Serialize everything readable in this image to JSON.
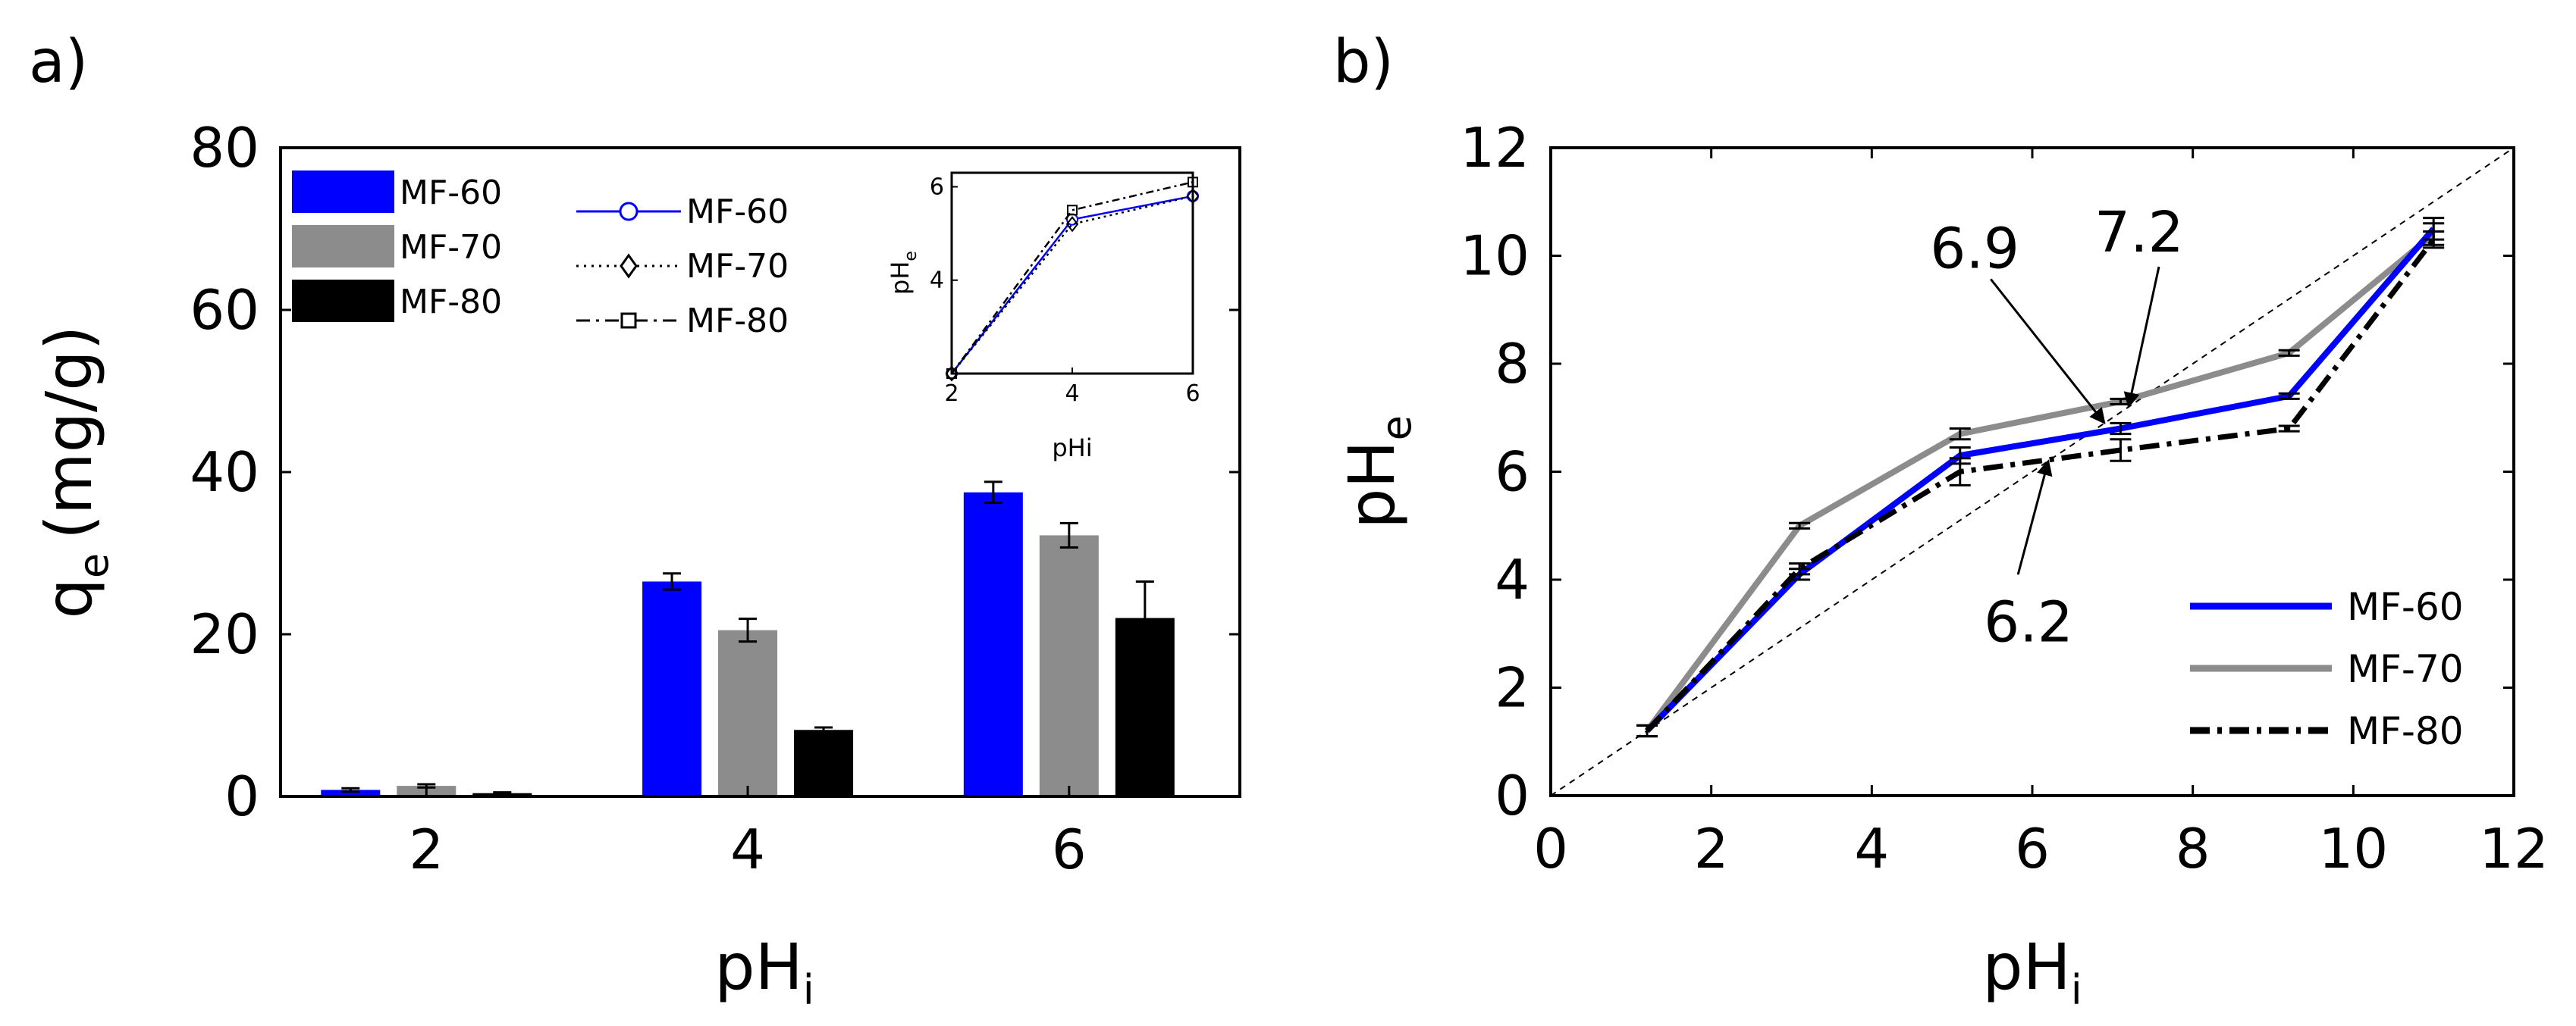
{
  "panels": {
    "a": {
      "label": "a)",
      "ylabel_main": "q",
      "ylabel_sub": "e",
      "ylabel_unit": "(mg/g)",
      "xlabel_main": "pH",
      "xlabel_sub": "i"
    },
    "b": {
      "label": "b)",
      "ylabel_main": "pH",
      "ylabel_sub": "e",
      "xlabel_main": "pH",
      "xlabel_sub": "i"
    }
  },
  "colors": {
    "mf60": "#0000ff",
    "mf70": "#8c8c8c",
    "mf80": "#000000"
  },
  "chart_data": [
    {
      "id": "panel-a-bars",
      "type": "bar",
      "categories": [
        "2",
        "4",
        "6"
      ],
      "series": [
        {
          "name": "MF-60",
          "values": [
            0.8,
            26.5,
            37.5
          ],
          "errors": [
            0.2,
            1.0,
            1.3
          ]
        },
        {
          "name": "MF-70",
          "values": [
            1.3,
            20.5,
            32.2
          ],
          "errors": [
            0.2,
            1.4,
            1.5
          ]
        },
        {
          "name": "MF-80",
          "values": [
            0.4,
            8.2,
            22.0
          ],
          "errors": [
            0.1,
            0.3,
            4.5
          ]
        }
      ],
      "ylim": [
        0,
        80
      ],
      "yticks": [
        0,
        20,
        40,
        60,
        80
      ],
      "xlabel": "pHi",
      "ylabel": "qe (mg/g)"
    },
    {
      "id": "panel-a-inset",
      "type": "line",
      "x": [
        2,
        4,
        6
      ],
      "series": [
        {
          "name": "MF-60",
          "values": [
            2.0,
            5.3,
            5.8
          ],
          "marker": "circle"
        },
        {
          "name": "MF-70",
          "values": [
            2.0,
            5.2,
            5.8
          ],
          "marker": "diamond"
        },
        {
          "name": "MF-80",
          "values": [
            2.0,
            5.5,
            6.1
          ],
          "marker": "square"
        }
      ],
      "xlim": [
        2,
        6
      ],
      "ylim": [
        2,
        6.3
      ],
      "xticks": [
        2,
        4,
        6
      ],
      "yticks": [
        4,
        6
      ],
      "xlabel": "pHi",
      "ylabel": "pHe"
    },
    {
      "id": "panel-b-lines",
      "type": "line",
      "x": [
        1.2,
        3.1,
        5.1,
        7.1,
        9.2,
        11.0
      ],
      "series": [
        {
          "name": "MF-60",
          "values": [
            1.2,
            4.1,
            6.3,
            6.8,
            7.4,
            10.5
          ],
          "errors": [
            0.1,
            0.1,
            0.15,
            0.1,
            0.05,
            0.2
          ]
        },
        {
          "name": "MF-70",
          "values": [
            1.2,
            5.0,
            6.7,
            7.3,
            8.2,
            10.4
          ],
          "errors": [
            0.1,
            0.05,
            0.1,
            0.05,
            0.05,
            0.2
          ]
        },
        {
          "name": "MF-80",
          "values": [
            1.2,
            4.2,
            6.0,
            6.4,
            6.8,
            10.3
          ],
          "errors": [
            0.1,
            0.1,
            0.25,
            0.2,
            0.05,
            0.15
          ]
        }
      ],
      "reference_line": {
        "x": [
          0,
          12
        ],
        "y": [
          0,
          12
        ]
      },
      "annotations": [
        {
          "text": "6.9",
          "x": 6.9,
          "y": 6.9
        },
        {
          "text": "7.2",
          "x": 7.2,
          "y": 7.2
        },
        {
          "text": "6.2",
          "x": 6.2,
          "y": 6.2
        }
      ],
      "xlim": [
        0,
        12
      ],
      "ylim": [
        0,
        12
      ],
      "xticks": [
        0,
        2,
        4,
        6,
        8,
        10,
        12
      ],
      "yticks": [
        0,
        2,
        4,
        6,
        8,
        10,
        12
      ],
      "xlabel": "pHi",
      "ylabel": "pHe",
      "legend": "bottom-right"
    }
  ]
}
